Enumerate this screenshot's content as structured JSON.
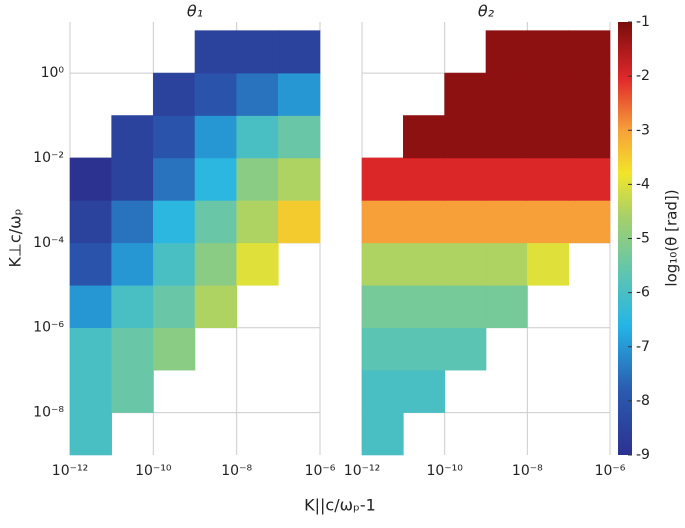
{
  "chart_data": {
    "type": "heatmap",
    "x_label": "K||c/ωₚ-1",
    "y_label": "K⊥c/ωₚ",
    "log_x": true,
    "log_y": true,
    "grid": true,
    "xlim": [
      1e-12,
      1e-06
    ],
    "ylim": [
      1e-09,
      16
    ],
    "xticks": [
      {
        "value": 1e-12,
        "label": "10⁻¹²"
      },
      {
        "value": 1e-10,
        "label": "10⁻¹⁰"
      },
      {
        "value": 1e-08,
        "label": "10⁻⁸"
      },
      {
        "value": 1e-06,
        "label": "10⁻⁶"
      }
    ],
    "yticks": [
      {
        "value": 1e-08,
        "label": "10⁻⁸"
      },
      {
        "value": 1e-06,
        "label": "10⁻⁶"
      },
      {
        "value": 0.0001,
        "label": "10⁻⁴"
      },
      {
        "value": 0.01,
        "label": "10⁻²"
      },
      {
        "value": 1,
        "label": "10⁰"
      }
    ],
    "x_edges": [
      1e-12,
      1e-11,
      1e-10,
      1e-09,
      1e-08,
      1e-07,
      1e-06
    ],
    "y_edges": [
      1e-09,
      1e-08,
      1e-07,
      1e-06,
      1e-05,
      0.0001,
      0.001,
      0.01,
      0.1,
      1,
      10
    ],
    "colorbar": {
      "label": "log₁₀(θ [rad])",
      "clim": [
        -9,
        -1
      ],
      "ticks": [
        -9,
        -8,
        -7,
        -6,
        -5,
        -4,
        -3,
        -2,
        -1
      ],
      "colormap": "jet"
    },
    "panels": [
      {
        "title": "θ₁",
        "values": [
          [
            -6,
            null,
            null,
            null,
            null,
            null
          ],
          [
            -6,
            -5.5,
            null,
            null,
            null,
            null
          ],
          [
            -6,
            -5.5,
            -5,
            null,
            null,
            null
          ],
          [
            -7,
            -6,
            -5.5,
            -4.5,
            null,
            null
          ],
          [
            -8,
            -7,
            -6,
            -5,
            -4,
            null
          ],
          [
            -8.5,
            -7.5,
            -6.5,
            -5.5,
            -4.5,
            -3.5
          ],
          [
            -9,
            -8.5,
            -7.5,
            -6.5,
            -5,
            -4.5
          ],
          [
            null,
            -8.5,
            -8,
            -7,
            -6,
            -5.5
          ],
          [
            null,
            null,
            -8.5,
            -8,
            -7.5,
            -7
          ],
          [
            null,
            null,
            null,
            -8.5,
            -8.5,
            -8.5
          ]
        ]
      },
      {
        "title": "θ₂",
        "values": [
          [
            -6,
            null,
            null,
            null,
            null,
            null
          ],
          [
            -6,
            -6,
            null,
            null,
            null,
            null
          ],
          [
            -5.7,
            -5.7,
            -5.7,
            null,
            null,
            null
          ],
          [
            -5.3,
            -5.3,
            -5.3,
            -5.3,
            null,
            null
          ],
          [
            -4.5,
            -4.5,
            -4.5,
            -4.5,
            -4,
            null
          ],
          [
            -3,
            -3,
            -3,
            -3,
            -3,
            -3
          ],
          [
            -2,
            -2,
            -2,
            -2,
            -2,
            -2
          ],
          [
            null,
            -1.2,
            -1.2,
            -1.2,
            -1.2,
            -1.2
          ],
          [
            null,
            null,
            -1.2,
            -1.2,
            -1.2,
            -1.2
          ],
          [
            null,
            null,
            null,
            -1.2,
            -1.2,
            -1.2
          ]
        ]
      }
    ]
  }
}
